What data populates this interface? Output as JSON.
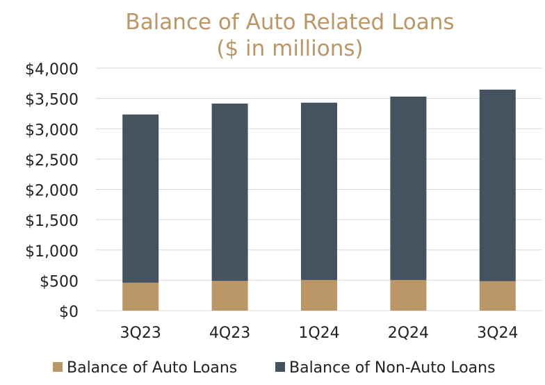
{
  "chart_data": {
    "type": "bar",
    "stacked": true,
    "title": "Balance of Auto Related Loans",
    "subtitle": "($ in millions)",
    "categories": [
      "3Q23",
      "4Q23",
      "1Q24",
      "2Q24",
      "3Q24"
    ],
    "series": [
      {
        "name": "Balance of Auto Loans",
        "color": "#BB9666",
        "values": [
          460,
          490,
          505,
          505,
          485
        ]
      },
      {
        "name": "Balance of Non-Auto Loans",
        "color": "#45525F",
        "values": [
          2775,
          2925,
          2925,
          3025,
          3160
        ]
      }
    ],
    "y_ticks": [
      "$0",
      "$500",
      "$1,000",
      "$1,500",
      "$2,000",
      "$2,500",
      "$3,000",
      "$3,500",
      "$4,000"
    ],
    "ylim": [
      0,
      4000
    ],
    "y_step": 500,
    "grid": true,
    "legend_position": "bottom",
    "title_color": "#BB9666",
    "text_color": "#222222",
    "grid_color": "#D9D9D9"
  }
}
